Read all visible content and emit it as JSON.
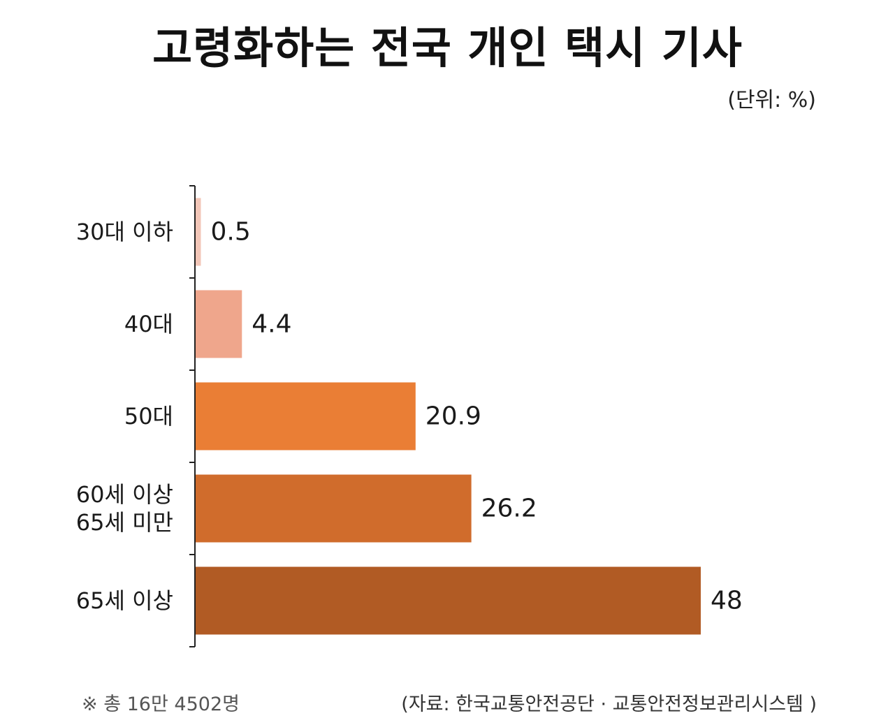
{
  "title": "고령화하는 전국 개인 택시 기사",
  "unit_label": "(단위: %)",
  "footnote": "※ 총 16만 4502명",
  "source": "(자료: 한국교통안전공단 · 교통안전정보관리시스템 )",
  "chart_data": {
    "type": "bar",
    "orientation": "horizontal",
    "title": "고령화하는 전국 개인 택시 기사",
    "unit": "%",
    "categories": [
      [
        "30대 이하"
      ],
      [
        "40대"
      ],
      [
        "50대"
      ],
      [
        "60세 이상",
        "65세 미만"
      ],
      [
        "65세 이상"
      ]
    ],
    "values": [
      0.5,
      4.4,
      20.9,
      26.2,
      48
    ],
    "value_labels": [
      "0.5",
      "4.4",
      "20.9",
      "26.2",
      "48"
    ],
    "colors": [
      "#f2c6b8",
      "#efa68c",
      "#ea7e35",
      "#d06c2c",
      "#b15b24"
    ],
    "xlim": [
      0,
      48
    ],
    "grid": false,
    "legend": "none"
  }
}
